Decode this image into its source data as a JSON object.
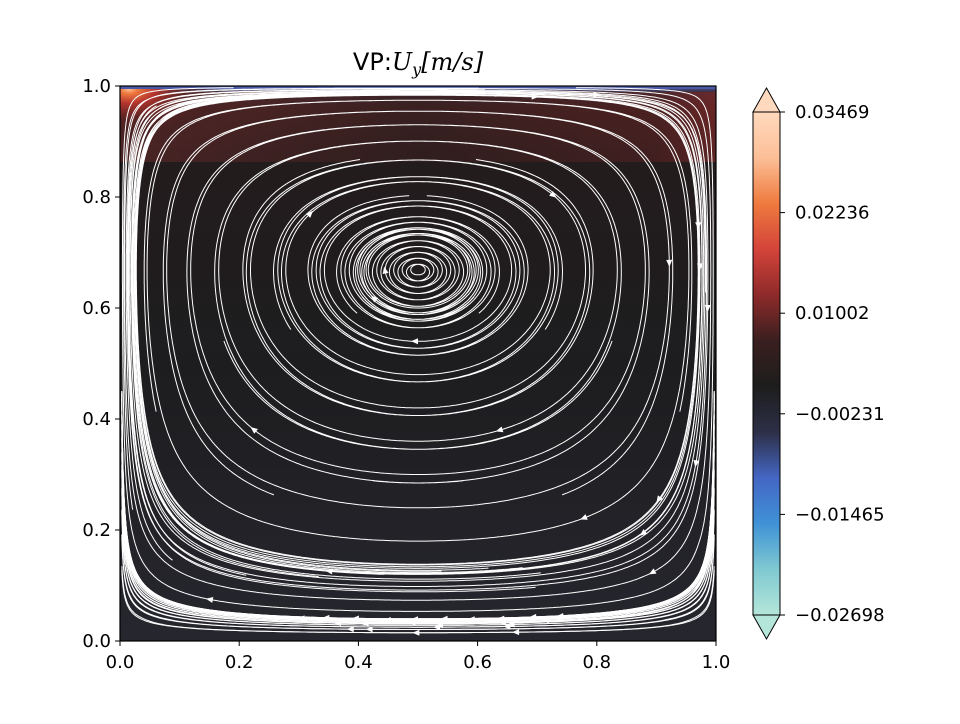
{
  "chart_data": {
    "type": "heatmap",
    "subtype": "streamplot",
    "title": {
      "prefix": "VP:",
      "symbol": "U",
      "subscript": "y",
      "unit": "[m/s]"
    },
    "xlabel": "",
    "ylabel": "",
    "xlim": [
      0.0,
      1.0
    ],
    "ylim": [
      0.0,
      1.0
    ],
    "x_ticks": [
      "0.0",
      "0.2",
      "0.4",
      "0.6",
      "0.8",
      "1.0"
    ],
    "y_ticks": [
      "0.0",
      "0.2",
      "0.4",
      "0.6",
      "0.8",
      "1.0"
    ],
    "grid": false,
    "colorbar": {
      "min": -0.02698,
      "max": 0.03469,
      "ticks": [
        "0.03469",
        "0.02236",
        "0.01002",
        "−0.00231",
        "−0.01465",
        "−0.02698"
      ],
      "extend": "both",
      "colormap": [
        "#b5e6da",
        "#7fc9d1",
        "#3f92d6",
        "#4466c4",
        "#2d2f47",
        "#1d1d1d",
        "#3a1f1f",
        "#8e2a2a",
        "#d4443a",
        "#ef7a3e",
        "#fcbf97",
        "#ffd9bd"
      ]
    },
    "field_description": "Lid-driven cavity: positive U_y (red/orange) concentrated near top-left corner at y≈0.97; weak negative (blue) strip along top lid; interior near zero (dark).",
    "streamlines": {
      "color": "#ffffff",
      "flow": "fluid moves left along top region, curls down near left wall, sweeps right along bottom and rises along right wall (clockwise circulation)"
    }
  }
}
